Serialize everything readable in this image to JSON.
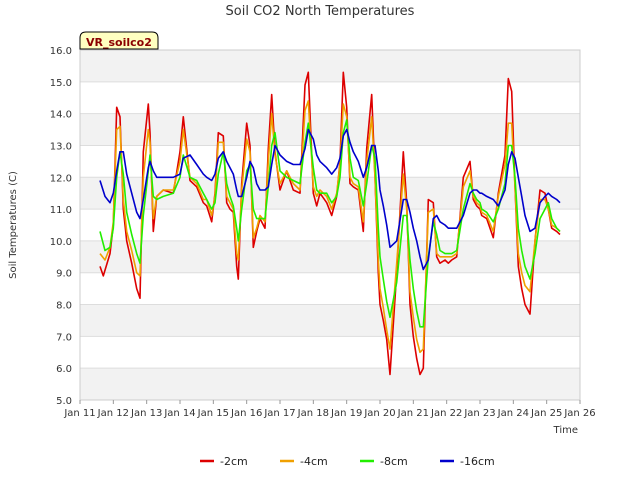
{
  "chart_data": {
    "type": "line",
    "title": "Soil CO2 North Temperatures",
    "xlabel": "Time",
    "ylabel": "Soil Temperatures (C)",
    "badge": "VR_soilco2",
    "ylim": [
      5.0,
      16.0
    ],
    "xlim": [
      11,
      26
    ],
    "yticks": [
      "5.0",
      "6.0",
      "7.0",
      "8.0",
      "9.0",
      "10.0",
      "11.0",
      "12.0",
      "13.0",
      "14.0",
      "15.0",
      "16.0"
    ],
    "xticks": [
      "Jan 11",
      "Jan 12",
      "Jan 13",
      "Jan 14",
      "Jan 15",
      "Jan 16",
      "Jan 17",
      "Jan 18",
      "Jan 19",
      "Jan 20",
      "Jan 21",
      "Jan 22",
      "Jan 23",
      "Jan 24",
      "Jan 25",
      "Jan 26"
    ],
    "grid": "horizontal bands",
    "legend_position": "bottom-center",
    "series": [
      {
        "name": "-2cm",
        "color": "#dd0000",
        "x": [
          11.6,
          11.7,
          11.9,
          12.0,
          12.1,
          12.2,
          12.3,
          12.4,
          12.55,
          12.7,
          12.8,
          12.9,
          13.05,
          13.1,
          13.2,
          13.3,
          13.5,
          13.8,
          14.0,
          14.1,
          14.3,
          14.5,
          14.7,
          14.8,
          14.95,
          15.05,
          15.15,
          15.3,
          15.4,
          15.5,
          15.6,
          15.7,
          15.75,
          15.85,
          16.0,
          16.1,
          16.2,
          16.3,
          16.4,
          16.55,
          16.65,
          16.75,
          16.85,
          17.0,
          17.2,
          17.4,
          17.6,
          17.75,
          17.85,
          18.0,
          18.1,
          18.2,
          18.4,
          18.55,
          18.7,
          18.8,
          18.9,
          19.0,
          19.1,
          19.2,
          19.35,
          19.5,
          19.6,
          19.75,
          19.85,
          19.95,
          20.0,
          20.1,
          20.2,
          20.3,
          20.5,
          20.7,
          20.8,
          20.9,
          21.0,
          21.1,
          21.2,
          21.3,
          21.45,
          21.6,
          21.7,
          21.8,
          21.95,
          22.05,
          22.15,
          22.3,
          22.5,
          22.7,
          22.8,
          22.9,
          23.0,
          23.05,
          23.2,
          23.4,
          23.55,
          23.75,
          23.85,
          23.95,
          24.05,
          24.15,
          24.25,
          24.35,
          24.5,
          24.65,
          24.8,
          24.95,
          25.05,
          25.15,
          25.3,
          25.4
        ],
        "y": [
          9.2,
          8.9,
          9.6,
          10.5,
          14.2,
          13.9,
          11.0,
          10.0,
          9.3,
          8.5,
          8.2,
          12.8,
          14.3,
          13.4,
          10.3,
          11.4,
          11.6,
          11.5,
          12.8,
          13.9,
          11.9,
          11.7,
          11.2,
          11.1,
          10.6,
          11.5,
          13.4,
          13.3,
          11.2,
          11.0,
          10.9,
          9.2,
          8.8,
          11.8,
          13.7,
          13.0,
          9.8,
          10.3,
          10.7,
          10.4,
          12.9,
          14.6,
          12.8,
          11.6,
          12.2,
          11.6,
          11.5,
          14.9,
          15.3,
          11.5,
          11.1,
          11.5,
          11.2,
          10.8,
          11.4,
          12.5,
          15.3,
          14.2,
          11.8,
          11.7,
          11.6,
          10.3,
          12.9,
          14.6,
          12.0,
          9.0,
          8.0,
          7.5,
          6.9,
          5.8,
          9.0,
          12.8,
          11.2,
          8.0,
          7.0,
          6.3,
          5.8,
          6.0,
          11.3,
          11.2,
          9.5,
          9.3,
          9.4,
          9.3,
          9.4,
          9.5,
          12.0,
          12.5,
          11.3,
          11.1,
          11.0,
          10.8,
          10.7,
          10.1,
          11.5,
          12.7,
          15.1,
          14.7,
          11.7,
          9.2,
          8.5,
          8.0,
          7.7,
          10.0,
          11.6,
          11.5,
          11.0,
          10.4,
          10.3,
          10.2
        ]
      },
      {
        "name": "-4cm",
        "color": "#f0a000",
        "x": [
          11.6,
          11.75,
          11.9,
          12.0,
          12.1,
          12.2,
          12.3,
          12.4,
          12.55,
          12.7,
          12.8,
          12.9,
          13.05,
          13.1,
          13.2,
          13.3,
          13.5,
          13.8,
          14.0,
          14.1,
          14.3,
          14.5,
          14.7,
          14.8,
          14.95,
          15.05,
          15.15,
          15.3,
          15.4,
          15.5,
          15.6,
          15.7,
          15.75,
          15.85,
          16.0,
          16.1,
          16.2,
          16.3,
          16.4,
          16.55,
          16.65,
          16.75,
          16.85,
          17.0,
          17.2,
          17.4,
          17.6,
          17.75,
          17.85,
          18.0,
          18.1,
          18.2,
          18.4,
          18.55,
          18.7,
          18.8,
          18.9,
          19.0,
          19.1,
          19.2,
          19.35,
          19.5,
          19.6,
          19.75,
          19.85,
          19.95,
          20.0,
          20.1,
          20.2,
          20.3,
          20.5,
          20.7,
          20.8,
          20.9,
          21.0,
          21.1,
          21.2,
          21.3,
          21.45,
          21.6,
          21.7,
          21.8,
          21.95,
          22.05,
          22.15,
          22.3,
          22.5,
          22.7,
          22.8,
          22.9,
          23.0,
          23.05,
          23.2,
          23.4,
          23.55,
          23.75,
          23.85,
          23.95,
          24.05,
          24.15,
          24.25,
          24.35,
          24.5,
          24.65,
          24.8,
          24.95,
          25.05,
          25.15,
          25.3,
          25.4
        ],
        "y": [
          9.6,
          9.4,
          9.8,
          10.6,
          13.5,
          13.6,
          11.3,
          10.3,
          9.7,
          9.0,
          8.9,
          12.0,
          13.5,
          13.1,
          10.7,
          11.4,
          11.6,
          11.6,
          12.5,
          13.5,
          12.0,
          11.8,
          11.3,
          11.3,
          10.8,
          11.4,
          13.1,
          13.1,
          11.4,
          11.2,
          11.0,
          9.6,
          9.4,
          11.6,
          13.2,
          12.8,
          10.1,
          10.4,
          10.8,
          10.6,
          12.5,
          14.0,
          12.7,
          11.8,
          12.2,
          11.8,
          11.6,
          14.1,
          14.4,
          11.7,
          11.4,
          11.6,
          11.4,
          11.0,
          11.5,
          12.4,
          14.3,
          13.9,
          12.0,
          11.8,
          11.7,
          10.6,
          12.5,
          13.9,
          12.0,
          9.4,
          8.5,
          7.9,
          7.2,
          6.6,
          9.3,
          12.1,
          11.0,
          8.4,
          7.6,
          6.9,
          6.5,
          6.6,
          10.9,
          11.0,
          9.6,
          9.5,
          9.5,
          9.5,
          9.5,
          9.6,
          11.7,
          12.2,
          11.4,
          11.2,
          11.1,
          10.9,
          10.8,
          10.3,
          11.4,
          12.4,
          13.7,
          13.7,
          11.7,
          9.6,
          9.0,
          8.6,
          8.4,
          10.0,
          11.3,
          11.3,
          11.0,
          10.5,
          10.4,
          10.3
        ]
      },
      {
        "name": "-8cm",
        "color": "#22ee00",
        "x": [
          11.6,
          11.75,
          11.9,
          12.0,
          12.1,
          12.2,
          12.3,
          12.4,
          12.55,
          12.7,
          12.8,
          12.9,
          13.05,
          13.1,
          13.2,
          13.3,
          13.5,
          13.8,
          14.0,
          14.1,
          14.3,
          14.5,
          14.7,
          14.8,
          14.95,
          15.05,
          15.15,
          15.3,
          15.4,
          15.5,
          15.6,
          15.7,
          15.75,
          15.85,
          16.0,
          16.1,
          16.2,
          16.3,
          16.4,
          16.55,
          16.65,
          16.75,
          16.85,
          17.0,
          17.2,
          17.4,
          17.6,
          17.75,
          17.85,
          18.0,
          18.1,
          18.2,
          18.4,
          18.55,
          18.7,
          18.8,
          18.9,
          19.0,
          19.1,
          19.2,
          19.35,
          19.5,
          19.6,
          19.75,
          19.85,
          19.95,
          20.0,
          20.1,
          20.2,
          20.3,
          20.5,
          20.7,
          20.8,
          20.9,
          21.0,
          21.1,
          21.2,
          21.3,
          21.45,
          21.6,
          21.7,
          21.8,
          21.95,
          22.05,
          22.15,
          22.3,
          22.5,
          22.7,
          22.8,
          22.9,
          23.0,
          23.05,
          23.2,
          23.4,
          23.55,
          23.75,
          23.85,
          23.95,
          24.05,
          24.15,
          24.25,
          24.35,
          24.5,
          24.65,
          24.8,
          24.95,
          25.05,
          25.15,
          25.3,
          25.4
        ],
        "y": [
          10.3,
          9.7,
          9.8,
          10.4,
          12.0,
          12.8,
          12.1,
          10.9,
          10.2,
          9.6,
          9.3,
          10.8,
          12.2,
          12.7,
          11.4,
          11.3,
          11.4,
          11.5,
          12.0,
          12.7,
          12.0,
          11.9,
          11.5,
          11.3,
          11.0,
          11.2,
          12.1,
          12.8,
          11.8,
          11.4,
          11.1,
          10.4,
          10.0,
          11.0,
          12.2,
          12.4,
          11.0,
          10.7,
          10.7,
          10.7,
          11.7,
          13.0,
          13.4,
          12.2,
          12.0,
          11.9,
          11.8,
          13.1,
          13.7,
          12.3,
          11.6,
          11.5,
          11.5,
          11.2,
          11.4,
          12.0,
          13.4,
          13.8,
          12.6,
          12.0,
          11.9,
          11.1,
          11.8,
          13.0,
          12.6,
          10.4,
          9.5,
          8.8,
          8.1,
          7.6,
          8.7,
          10.8,
          10.8,
          9.4,
          8.5,
          7.8,
          7.3,
          7.3,
          9.5,
          10.6,
          10.2,
          9.7,
          9.6,
          9.6,
          9.6,
          9.7,
          11.0,
          11.8,
          11.5,
          11.3,
          11.2,
          11.0,
          10.9,
          10.6,
          11.0,
          11.8,
          13.0,
          13.0,
          12.0,
          10.4,
          9.7,
          9.2,
          8.8,
          9.6,
          10.7,
          11.0,
          11.2,
          10.7,
          10.4,
          10.3
        ]
      },
      {
        "name": "-16cm",
        "color": "#0000cc",
        "x": [
          11.6,
          11.75,
          11.9,
          12.0,
          12.1,
          12.2,
          12.3,
          12.4,
          12.55,
          12.7,
          12.8,
          12.9,
          13.05,
          13.1,
          13.2,
          13.3,
          13.5,
          13.8,
          14.0,
          14.1,
          14.3,
          14.5,
          14.7,
          14.8,
          14.95,
          15.05,
          15.15,
          15.3,
          15.4,
          15.5,
          15.6,
          15.7,
          15.75,
          15.85,
          16.0,
          16.1,
          16.2,
          16.3,
          16.4,
          16.55,
          16.65,
          16.75,
          16.85,
          17.0,
          17.2,
          17.4,
          17.6,
          17.75,
          17.85,
          18.0,
          18.1,
          18.2,
          18.4,
          18.55,
          18.7,
          18.8,
          18.9,
          19.0,
          19.1,
          19.2,
          19.35,
          19.5,
          19.6,
          19.75,
          19.85,
          19.95,
          20.0,
          20.1,
          20.2,
          20.3,
          20.5,
          20.7,
          20.8,
          20.9,
          21.0,
          21.1,
          21.2,
          21.3,
          21.45,
          21.6,
          21.7,
          21.8,
          21.95,
          22.05,
          22.15,
          22.3,
          22.5,
          22.7,
          22.8,
          22.9,
          23.0,
          23.05,
          23.2,
          23.4,
          23.55,
          23.75,
          23.85,
          23.95,
          24.05,
          24.15,
          24.25,
          24.35,
          24.5,
          24.65,
          24.8,
          24.95,
          25.05,
          25.15,
          25.3,
          25.4
        ],
        "y": [
          11.9,
          11.4,
          11.2,
          11.5,
          12.2,
          12.8,
          12.8,
          12.1,
          11.5,
          10.9,
          10.7,
          11.3,
          12.3,
          12.5,
          12.2,
          12.0,
          12.0,
          12.0,
          12.1,
          12.6,
          12.7,
          12.4,
          12.1,
          12.0,
          11.9,
          12.1,
          12.6,
          12.8,
          12.5,
          12.3,
          12.1,
          11.6,
          11.4,
          11.4,
          12.0,
          12.5,
          12.3,
          11.8,
          11.6,
          11.6,
          11.7,
          12.4,
          13.0,
          12.7,
          12.5,
          12.4,
          12.4,
          12.9,
          13.5,
          13.2,
          12.7,
          12.5,
          12.3,
          12.1,
          12.3,
          12.6,
          13.3,
          13.5,
          13.1,
          12.8,
          12.5,
          12.0,
          12.3,
          13.0,
          13.0,
          12.2,
          11.6,
          11.1,
          10.5,
          9.8,
          10.0,
          11.3,
          11.3,
          10.9,
          10.4,
          10.0,
          9.5,
          9.1,
          9.4,
          10.7,
          10.8,
          10.6,
          10.5,
          10.4,
          10.4,
          10.4,
          10.8,
          11.5,
          11.6,
          11.6,
          11.5,
          11.5,
          11.4,
          11.3,
          11.1,
          11.6,
          12.4,
          12.8,
          12.6,
          12.0,
          11.4,
          10.8,
          10.3,
          10.4,
          11.2,
          11.4,
          11.5,
          11.4,
          11.3,
          11.2
        ]
      }
    ]
  }
}
